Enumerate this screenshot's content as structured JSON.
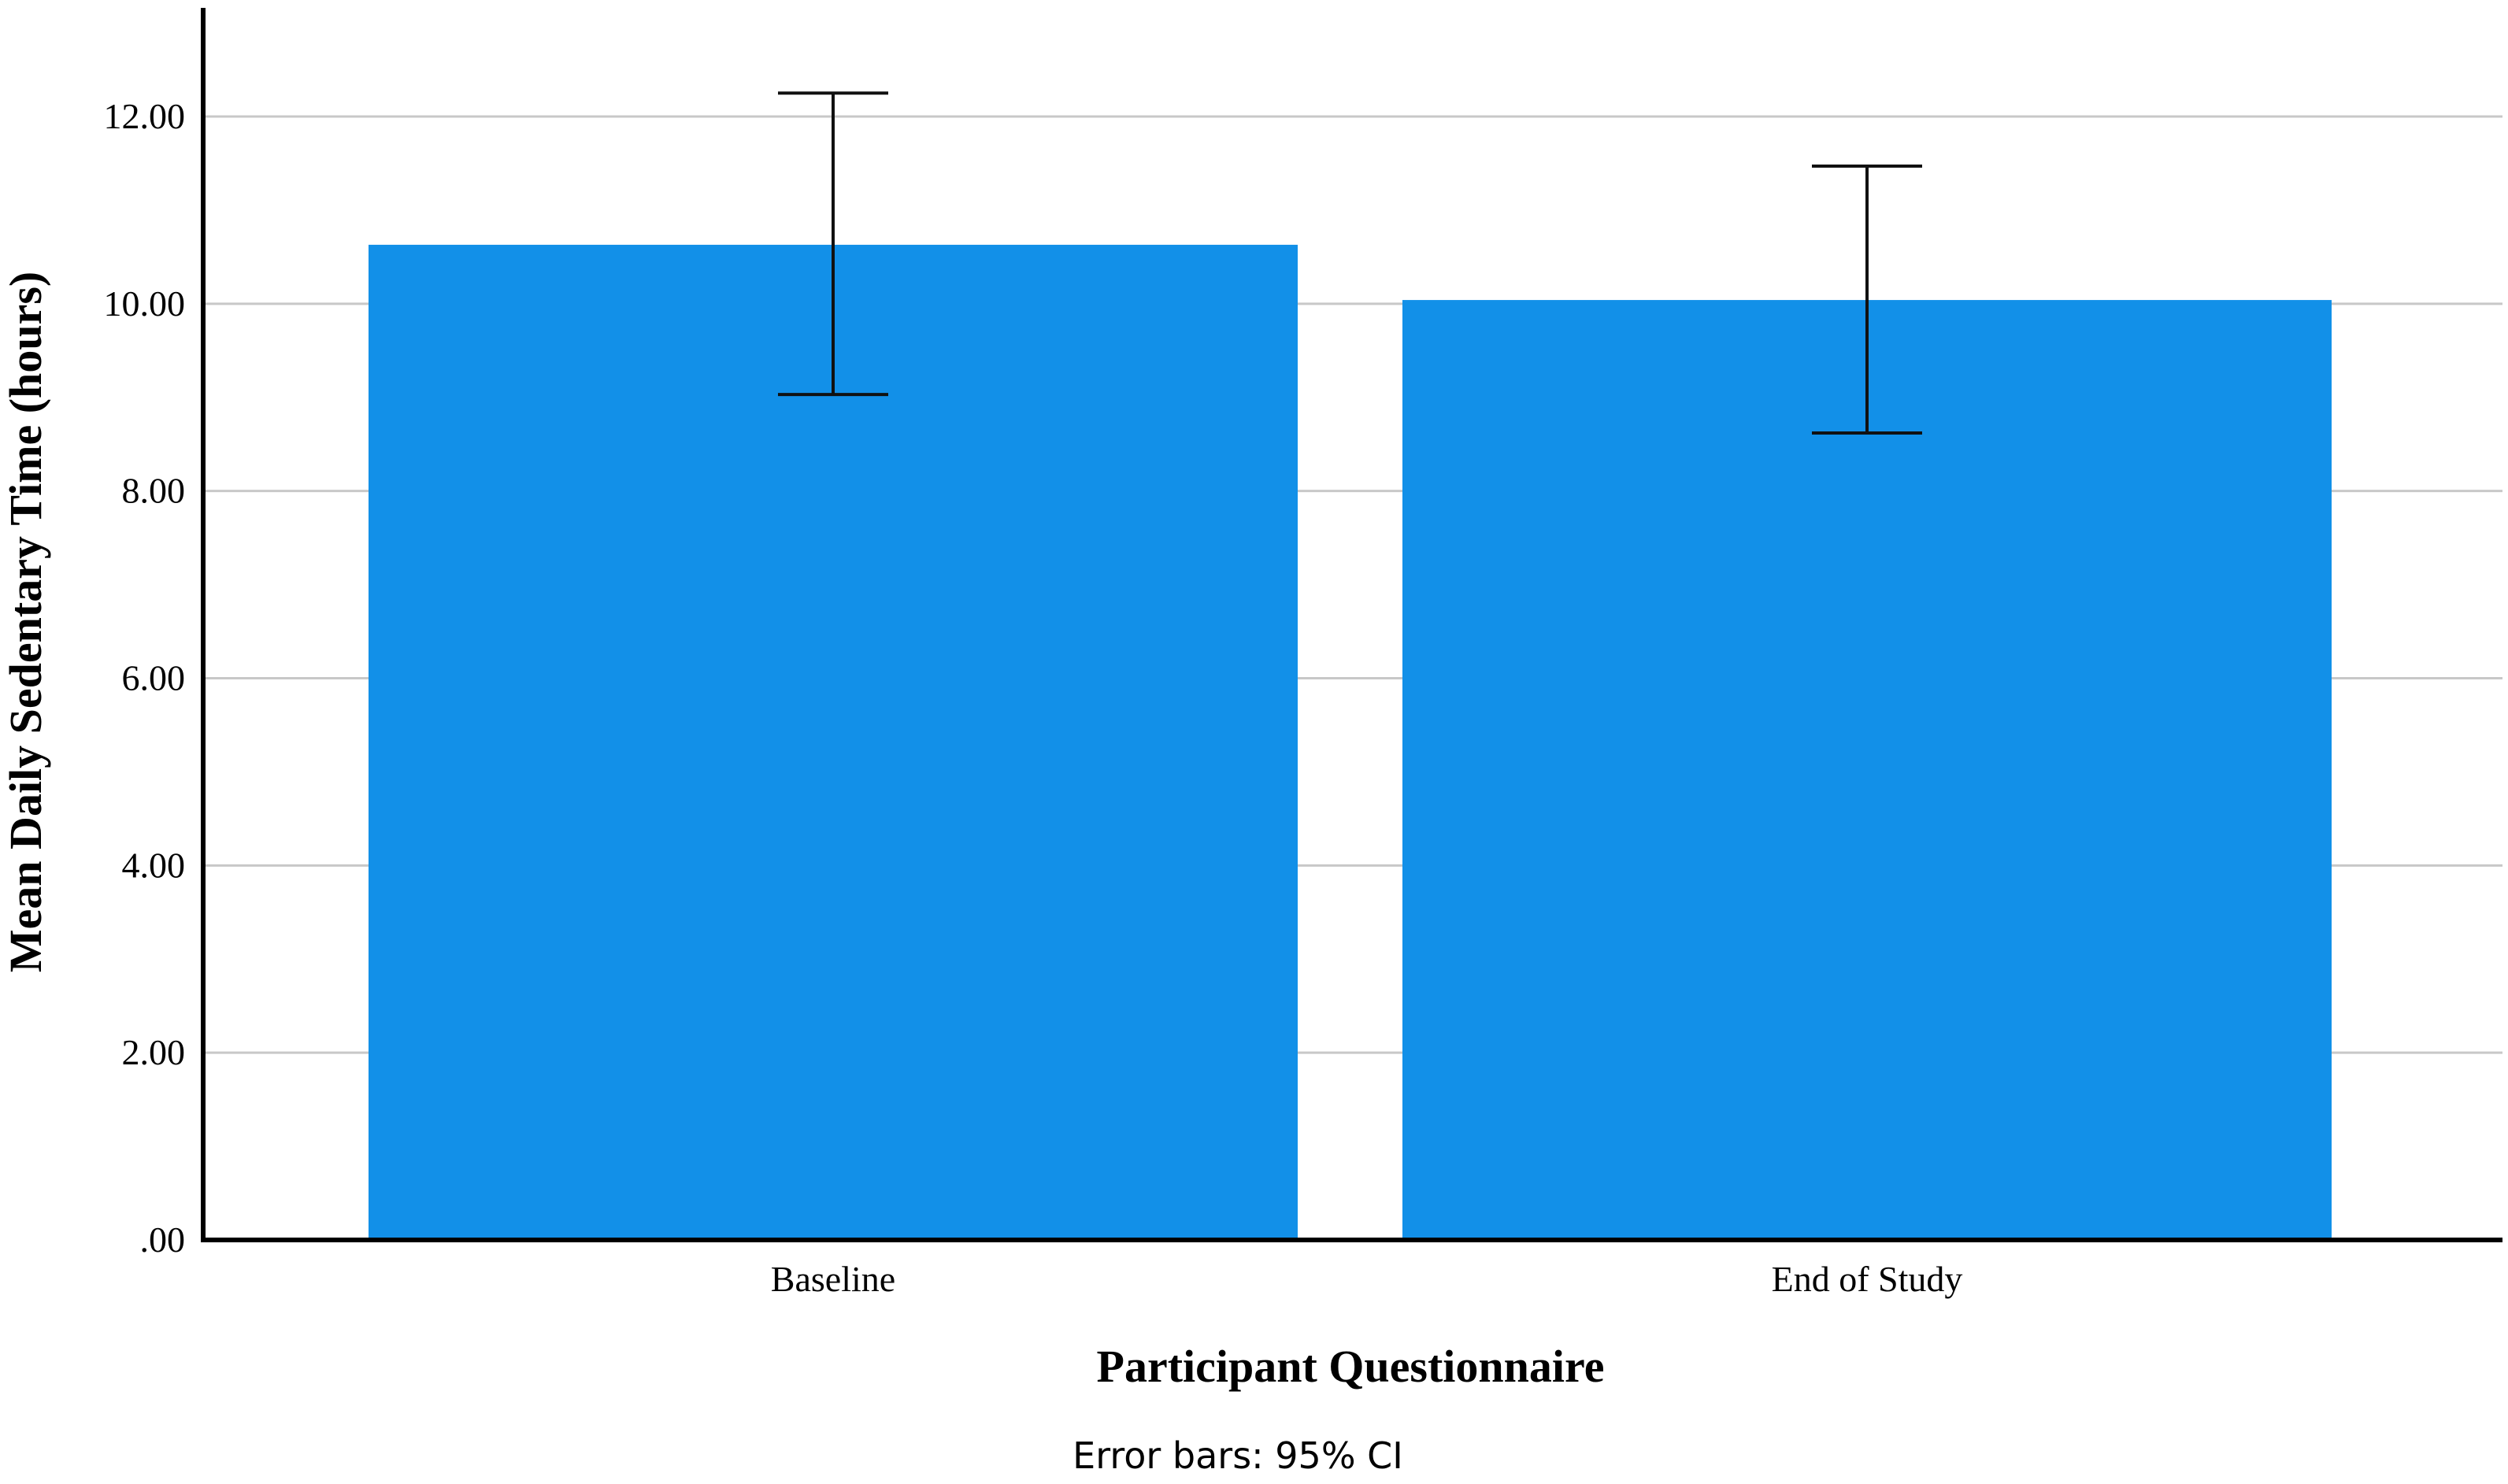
{
  "chart_data": {
    "type": "bar",
    "categories": [
      "Baseline",
      "End of Study"
    ],
    "series": [
      {
        "values": [
          10.63,
          10.04
        ],
        "ci_low": [
          9.03,
          8.62
        ],
        "ci_high": [
          12.25,
          11.47
        ]
      }
    ],
    "title": "",
    "xlabel": "Participant Questionnaire",
    "ylabel": "Mean Daily Sedentary Time (hours)",
    "ylim": [
      0,
      13.2
    ],
    "yticks": [
      0,
      2,
      4,
      6,
      8,
      10,
      12
    ],
    "ytick_labels": [
      ".00",
      "2.00",
      "4.00",
      "6.00",
      "8.00",
      "10.00",
      "12.00"
    ],
    "grid": true,
    "legend": "none",
    "bar_color": "#1290E8",
    "footnote": "Error bars: 95% CI"
  }
}
